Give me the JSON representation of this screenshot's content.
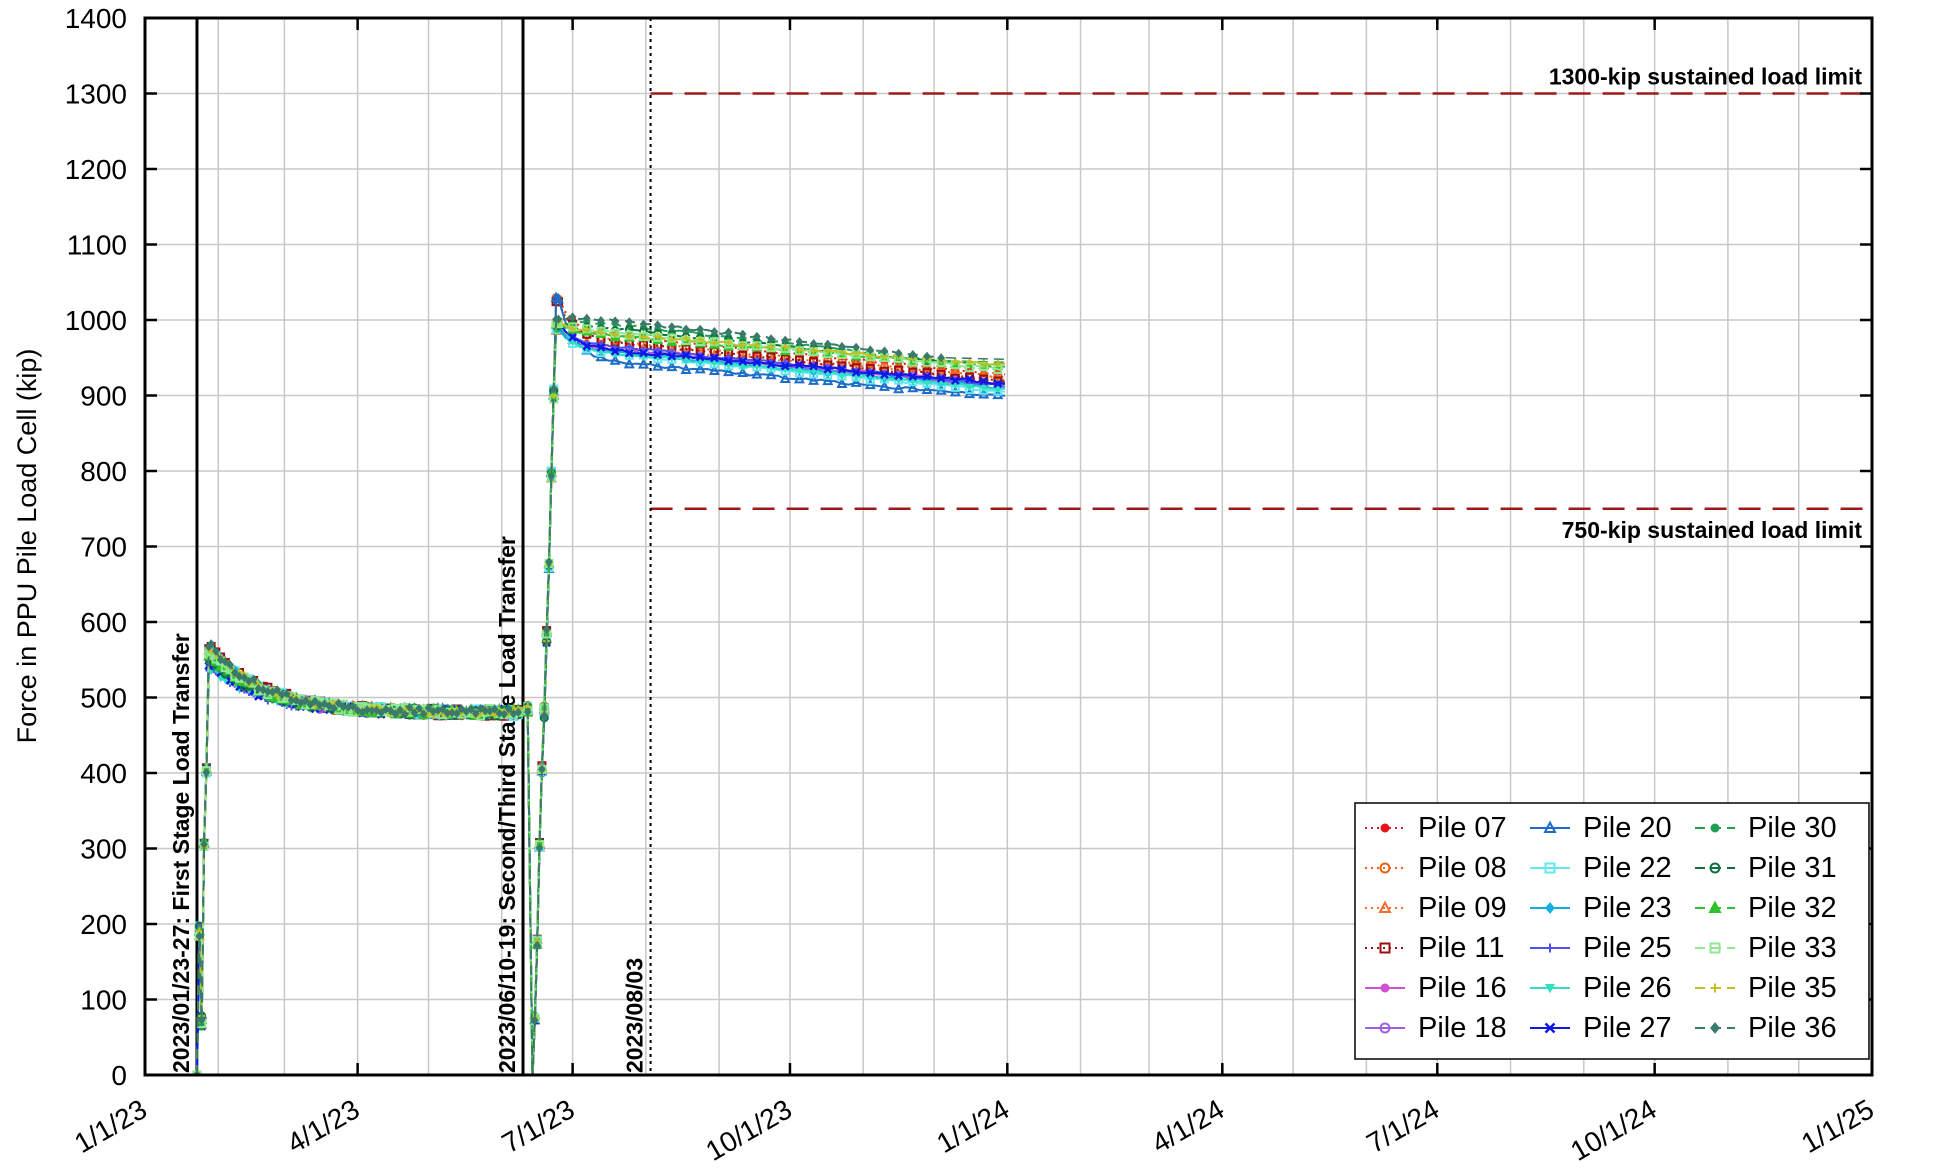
{
  "chart_data": {
    "type": "line",
    "title": "",
    "xlabel": "",
    "ylabel": "Force in PPU Pile Load Cell (kip)",
    "x_type": "date",
    "xlim": [
      "2023-01-01",
      "2025-01-01"
    ],
    "ylim": [
      0,
      1400
    ],
    "grid": true,
    "legend_position": "bottom-right",
    "x_tick_labels": [
      "1/1/23",
      "4/1/23",
      "7/1/23",
      "10/1/23",
      "1/1/24",
      "4/1/24",
      "7/1/24",
      "10/1/24",
      "1/1/25"
    ],
    "x_tick_dates": [
      "2023-01-01",
      "2023-04-01",
      "2023-07-01",
      "2023-10-01",
      "2024-01-01",
      "2024-04-01",
      "2024-07-01",
      "2024-10-01",
      "2025-01-01"
    ],
    "y_ticks": [
      0,
      100,
      200,
      300,
      400,
      500,
      600,
      700,
      800,
      900,
      1000,
      1100,
      1200,
      1300,
      1400
    ],
    "reference_lines": [
      {
        "value": 1300,
        "label": "1300-kip sustained load limit",
        "from": "2023-08-03",
        "color": "#a01818"
      },
      {
        "value": 750,
        "label": "750-kip sustained load limit",
        "from": "2023-08-03",
        "color": "#a01818"
      }
    ],
    "event_lines": [
      {
        "date": "2023-01-23",
        "label": "2023/01/23-27: First Stage Load Transfer",
        "style": "solid"
      },
      {
        "date": "2023-06-10",
        "label": "2023/06/10-19: Second/Third Stage Load Transfer",
        "style": "solid"
      },
      {
        "date": "2023-08-03",
        "label": "2023/08/03",
        "style": "dotted"
      }
    ],
    "series": [
      {
        "name": "Pile 07",
        "color": "#e8141c",
        "marker": "dot-filled",
        "line": "dotted",
        "final": 928
      },
      {
        "name": "Pile 08",
        "color": "#e86010",
        "marker": "circle-open",
        "line": "dotted",
        "final": 925
      },
      {
        "name": "Pile 09",
        "color": "#f07030",
        "marker": "triangle-open",
        "line": "dotted",
        "final": 922
      },
      {
        "name": "Pile 11",
        "color": "#9a1010",
        "marker": "square-open",
        "line": "dotted",
        "final": 918
      },
      {
        "name": "Pile 16",
        "color": "#d050d0",
        "marker": "dot-filled",
        "line": "solid",
        "final": 915
      },
      {
        "name": "Pile 18",
        "color": "#9a60e0",
        "marker": "circle-open",
        "line": "solid",
        "final": 912
      },
      {
        "name": "Pile 20",
        "color": "#1c6cc8",
        "marker": "triangle-open",
        "line": "solid",
        "final": 898
      },
      {
        "name": "Pile 22",
        "color": "#60e8f0",
        "marker": "square-open",
        "line": "solid",
        "final": 905
      },
      {
        "name": "Pile 23",
        "color": "#10b0e0",
        "marker": "diamond-filled",
        "line": "solid",
        "final": 910
      },
      {
        "name": "Pile 25",
        "color": "#5050f0",
        "marker": "plus",
        "line": "solid",
        "final": 913
      },
      {
        "name": "Pile 26",
        "color": "#30e0c0",
        "marker": "triangle-down-filled",
        "line": "solid",
        "final": 908
      },
      {
        "name": "Pile 27",
        "color": "#1018e8",
        "marker": "x",
        "line": "solid",
        "final": 916
      },
      {
        "name": "Pile 30",
        "color": "#20a050",
        "marker": "dot-filled",
        "line": "dashed",
        "final": 946
      },
      {
        "name": "Pile 31",
        "color": "#107040",
        "marker": "circle-open",
        "line": "dashed",
        "final": 944
      },
      {
        "name": "Pile 32",
        "color": "#30c030",
        "marker": "triangle-filled",
        "line": "dashed",
        "final": 938
      },
      {
        "name": "Pile 33",
        "color": "#90e890",
        "marker": "square-open",
        "line": "dashed",
        "final": 934
      },
      {
        "name": "Pile 35",
        "color": "#c0c020",
        "marker": "plus",
        "line": "dashed",
        "final": 940
      },
      {
        "name": "Pile 36",
        "color": "#3a7a6a",
        "marker": "diamond-filled",
        "line": "dashed",
        "final": 950
      }
    ]
  }
}
